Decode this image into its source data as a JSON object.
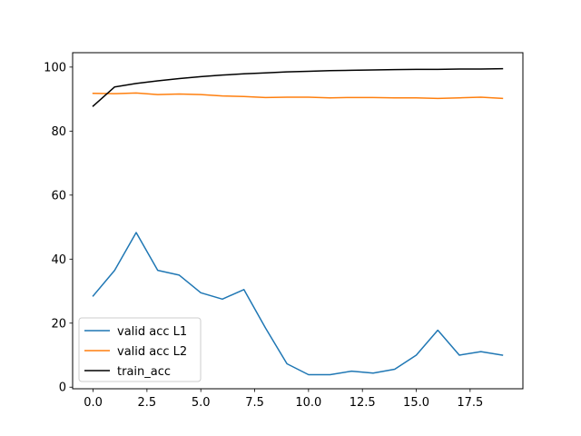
{
  "chart_data": {
    "type": "line",
    "title": "",
    "xlabel": "",
    "ylabel": "",
    "x": [
      0,
      1,
      2,
      3,
      4,
      5,
      6,
      7,
      8,
      9,
      10,
      11,
      12,
      13,
      14,
      15,
      16,
      17,
      18,
      19
    ],
    "xlim": [
      -0.95,
      19.95
    ],
    "ylim": [
      -0.5,
      104.5
    ],
    "xticks": [
      0.0,
      2.5,
      5.0,
      7.5,
      10.0,
      12.5,
      15.0,
      17.5
    ],
    "xtick_labels": [
      "0.0",
      "2.5",
      "5.0",
      "7.5",
      "10.0",
      "12.5",
      "15.0",
      "17.5"
    ],
    "yticks": [
      0,
      20,
      40,
      60,
      80,
      100
    ],
    "ytick_labels": [
      "0",
      "20",
      "40",
      "60",
      "80",
      "100"
    ],
    "grid": false,
    "legend_position": "lower-left",
    "series": [
      {
        "name": "valid acc L1",
        "color": "#1f77b4",
        "values": [
          28.5,
          36.5,
          48.3,
          36.5,
          35.0,
          29.5,
          27.5,
          30.5,
          18.5,
          7.3,
          3.9,
          3.9,
          5.0,
          4.4,
          5.6,
          10.0,
          17.8,
          10.0,
          11.1,
          10.0
        ]
      },
      {
        "name": "valid acc L2",
        "color": "#ff7f0e",
        "values": [
          91.8,
          91.7,
          91.9,
          91.4,
          91.6,
          91.4,
          91.0,
          90.8,
          90.5,
          90.6,
          90.6,
          90.4,
          90.5,
          90.5,
          90.4,
          90.4,
          90.2,
          90.4,
          90.6,
          90.2
        ]
      },
      {
        "name": "train_acc",
        "color": "#000000",
        "values": [
          87.8,
          93.8,
          94.9,
          95.7,
          96.4,
          97.0,
          97.5,
          97.9,
          98.2,
          98.5,
          98.7,
          98.9,
          99.0,
          99.1,
          99.2,
          99.3,
          99.3,
          99.4,
          99.4,
          99.5
        ]
      }
    ]
  }
}
